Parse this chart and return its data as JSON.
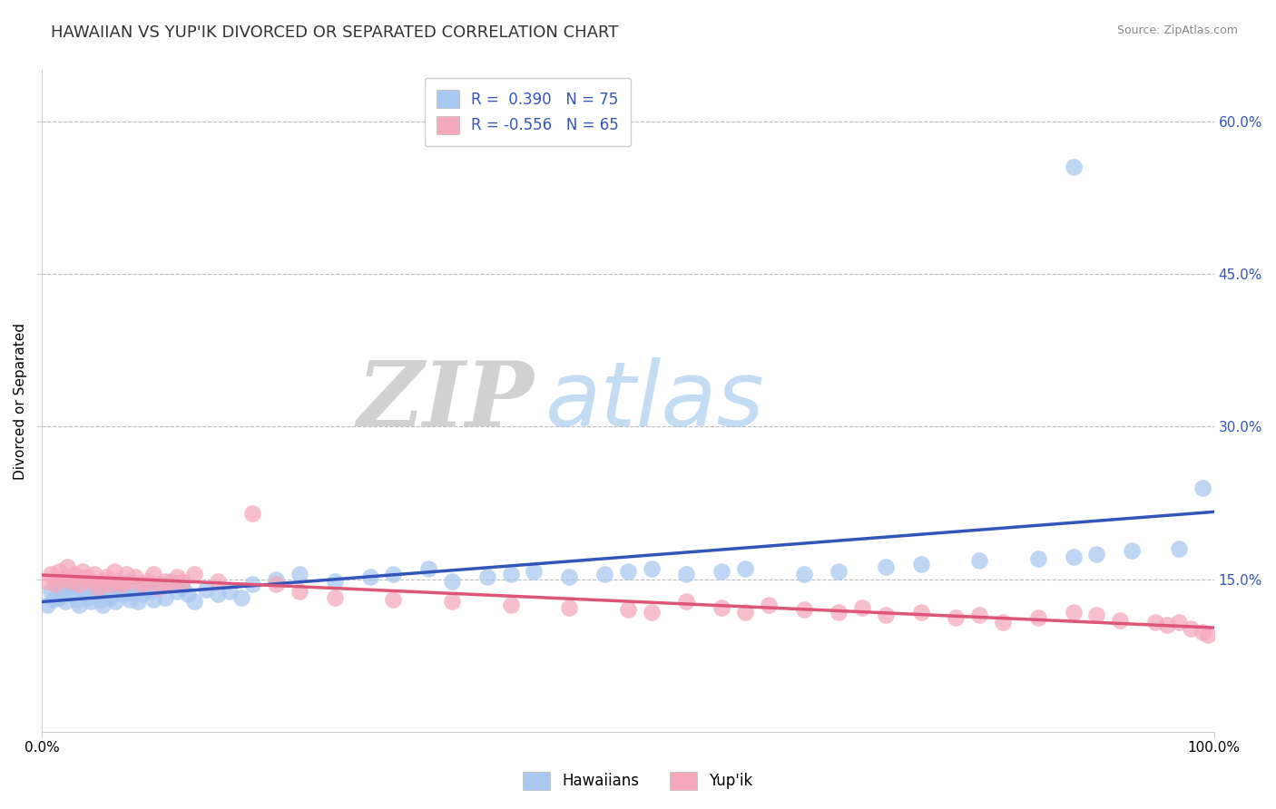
{
  "title": "HAWAIIAN VS YUP'IK DIVORCED OR SEPARATED CORRELATION CHART",
  "source_text": "Source: ZipAtlas.com",
  "ylabel": "Divorced or Separated",
  "legend_hawaiians": "Hawaiians",
  "legend_yupik": "Yup'ik",
  "hawaiian_R": 0.39,
  "hawaiian_N": 75,
  "yupik_R": -0.556,
  "yupik_N": 65,
  "hawaiian_color": "#A8C8F0",
  "yupik_color": "#F5A8BB",
  "hawaiian_line_color": "#3355BB",
  "yupik_line_color": "#DD5577",
  "background_color": "#FFFFFF",
  "grid_color": "#BBBBBB",
  "watermark_zip": "ZIP",
  "watermark_atlas": "atlas",
  "xlim": [
    0,
    1.0
  ],
  "ylim": [
    0,
    0.65
  ],
  "yticks": [
    0.15,
    0.3,
    0.45,
    0.6
  ],
  "ytick_labels": [
    "15.0%",
    "30.0%",
    "45.0%",
    "60.0%"
  ],
  "xticks": [
    0.0,
    1.0
  ],
  "xtick_labels": [
    "0.0%",
    "100.0%"
  ],
  "hawaiian_x": [
    0.005,
    0.008,
    0.01,
    0.012,
    0.015,
    0.018,
    0.02,
    0.022,
    0.025,
    0.027,
    0.03,
    0.032,
    0.035,
    0.038,
    0.04,
    0.042,
    0.045,
    0.048,
    0.05,
    0.052,
    0.055,
    0.058,
    0.06,
    0.063,
    0.065,
    0.07,
    0.072,
    0.075,
    0.08,
    0.082,
    0.085,
    0.09,
    0.092,
    0.095,
    0.1,
    0.105,
    0.11,
    0.115,
    0.12,
    0.125,
    0.13,
    0.14,
    0.15,
    0.16,
    0.17,
    0.18,
    0.2,
    0.22,
    0.25,
    0.28,
    0.3,
    0.33,
    0.35,
    0.38,
    0.4,
    0.42,
    0.45,
    0.48,
    0.5,
    0.52,
    0.55,
    0.58,
    0.6,
    0.65,
    0.68,
    0.72,
    0.75,
    0.8,
    0.85,
    0.88,
    0.9,
    0.93,
    0.97,
    0.99,
    0.88
  ],
  "hawaiian_y": [
    0.125,
    0.138,
    0.13,
    0.145,
    0.132,
    0.14,
    0.128,
    0.142,
    0.135,
    0.148,
    0.13,
    0.125,
    0.138,
    0.142,
    0.133,
    0.128,
    0.14,
    0.135,
    0.13,
    0.125,
    0.138,
    0.132,
    0.145,
    0.128,
    0.14,
    0.135,
    0.138,
    0.13,
    0.142,
    0.128,
    0.135,
    0.14,
    0.138,
    0.13,
    0.145,
    0.132,
    0.148,
    0.138,
    0.142,
    0.135,
    0.128,
    0.14,
    0.135,
    0.138,
    0.132,
    0.145,
    0.15,
    0.155,
    0.148,
    0.152,
    0.155,
    0.16,
    0.148,
    0.152,
    0.155,
    0.158,
    0.152,
    0.155,
    0.158,
    0.16,
    0.155,
    0.158,
    0.16,
    0.155,
    0.158,
    0.162,
    0.165,
    0.168,
    0.17,
    0.172,
    0.175,
    0.178,
    0.18,
    0.24,
    0.555
  ],
  "yupik_x": [
    0.005,
    0.008,
    0.012,
    0.015,
    0.018,
    0.022,
    0.025,
    0.028,
    0.032,
    0.035,
    0.038,
    0.042,
    0.045,
    0.048,
    0.052,
    0.055,
    0.058,
    0.062,
    0.065,
    0.068,
    0.072,
    0.075,
    0.08,
    0.085,
    0.09,
    0.095,
    0.1,
    0.105,
    0.11,
    0.115,
    0.12,
    0.13,
    0.15,
    0.18,
    0.2,
    0.22,
    0.25,
    0.3,
    0.35,
    0.4,
    0.45,
    0.5,
    0.52,
    0.55,
    0.58,
    0.6,
    0.62,
    0.65,
    0.68,
    0.7,
    0.72,
    0.75,
    0.78,
    0.8,
    0.82,
    0.85,
    0.88,
    0.9,
    0.92,
    0.95,
    0.96,
    0.97,
    0.98,
    0.99,
    0.995
  ],
  "yupik_y": [
    0.148,
    0.155,
    0.145,
    0.158,
    0.15,
    0.162,
    0.148,
    0.155,
    0.145,
    0.158,
    0.152,
    0.148,
    0.155,
    0.142,
    0.148,
    0.152,
    0.145,
    0.158,
    0.148,
    0.145,
    0.155,
    0.148,
    0.152,
    0.145,
    0.148,
    0.155,
    0.142,
    0.148,
    0.145,
    0.152,
    0.148,
    0.155,
    0.148,
    0.215,
    0.145,
    0.138,
    0.132,
    0.13,
    0.128,
    0.125,
    0.122,
    0.12,
    0.118,
    0.128,
    0.122,
    0.118,
    0.125,
    0.12,
    0.118,
    0.122,
    0.115,
    0.118,
    0.112,
    0.115,
    0.108,
    0.112,
    0.118,
    0.115,
    0.11,
    0.108,
    0.105,
    0.108,
    0.102,
    0.098,
    0.095
  ],
  "title_fontsize": 13,
  "axis_label_fontsize": 11,
  "tick_fontsize": 11,
  "legend_fontsize": 12
}
